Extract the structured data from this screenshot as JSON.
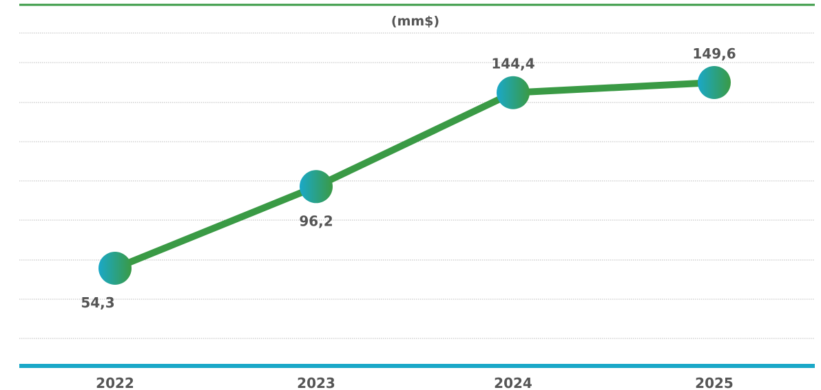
{
  "chart_data": {
    "type": "line",
    "unit": "(mm$)",
    "categories": [
      "2022",
      "2023",
      "2024",
      "2025"
    ],
    "series": [
      {
        "values": [
          54.3,
          96.2,
          144.4,
          149.6
        ],
        "labels": [
          "54,3",
          "96,2",
          "144,4",
          "149,6"
        ]
      }
    ],
    "grid": true,
    "legend": "none",
    "colors": {
      "line": "#3a9a45",
      "marker_start": "#1aa8c8",
      "marker_end": "#3a9a45",
      "top_rule": "#3a9a45",
      "baseline": "#1aa8c8",
      "grid": "#b9b9b9",
      "text": "#555555"
    }
  }
}
